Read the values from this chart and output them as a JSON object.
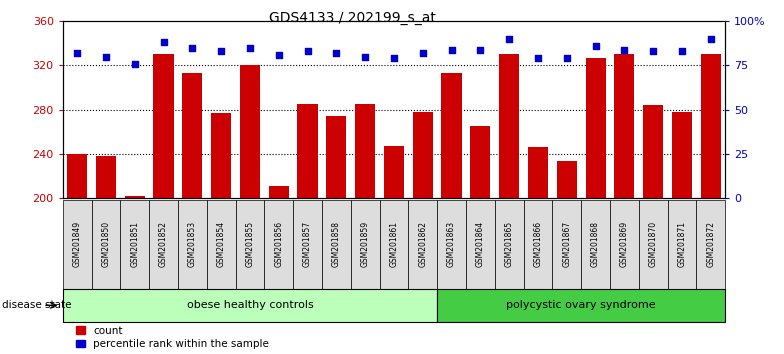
{
  "title": "GDS4133 / 202199_s_at",
  "samples": [
    "GSM201849",
    "GSM201850",
    "GSM201851",
    "GSM201852",
    "GSM201853",
    "GSM201854",
    "GSM201855",
    "GSM201856",
    "GSM201857",
    "GSM201858",
    "GSM201859",
    "GSM201861",
    "GSM201862",
    "GSM201863",
    "GSM201864",
    "GSM201865",
    "GSM201866",
    "GSM201867",
    "GSM201868",
    "GSM201869",
    "GSM201870",
    "GSM201871",
    "GSM201872"
  ],
  "counts": [
    240,
    238,
    202,
    330,
    313,
    277,
    320,
    211,
    285,
    274,
    285,
    247,
    278,
    313,
    265,
    330,
    246,
    234,
    327,
    330,
    284,
    278,
    330
  ],
  "percentiles": [
    82,
    80,
    76,
    88,
    85,
    83,
    85,
    81,
    83,
    82,
    80,
    79,
    82,
    84,
    84,
    90,
    79,
    79,
    86,
    84,
    83,
    83,
    90
  ],
  "group1_label": "obese healthy controls",
  "group1_count": 13,
  "group2_label": "polycystic ovary syndrome",
  "group2_count": 10,
  "disease_state_label": "disease state",
  "ylim_left": [
    200,
    360
  ],
  "ylim_right": [
    0,
    100
  ],
  "yticks_left": [
    200,
    240,
    280,
    320,
    360
  ],
  "yticks_right": [
    0,
    25,
    50,
    75,
    100
  ],
  "ytick_labels_right": [
    "0",
    "25",
    "50",
    "75",
    "100%"
  ],
  "bar_color": "#cc0000",
  "dot_color": "#0000cc",
  "group1_bg": "#bbffbb",
  "group2_bg": "#44cc44",
  "label_bg": "#dddddd",
  "legend_count_label": "count",
  "legend_pct_label": "percentile rank within the sample",
  "bar_width": 0.7
}
